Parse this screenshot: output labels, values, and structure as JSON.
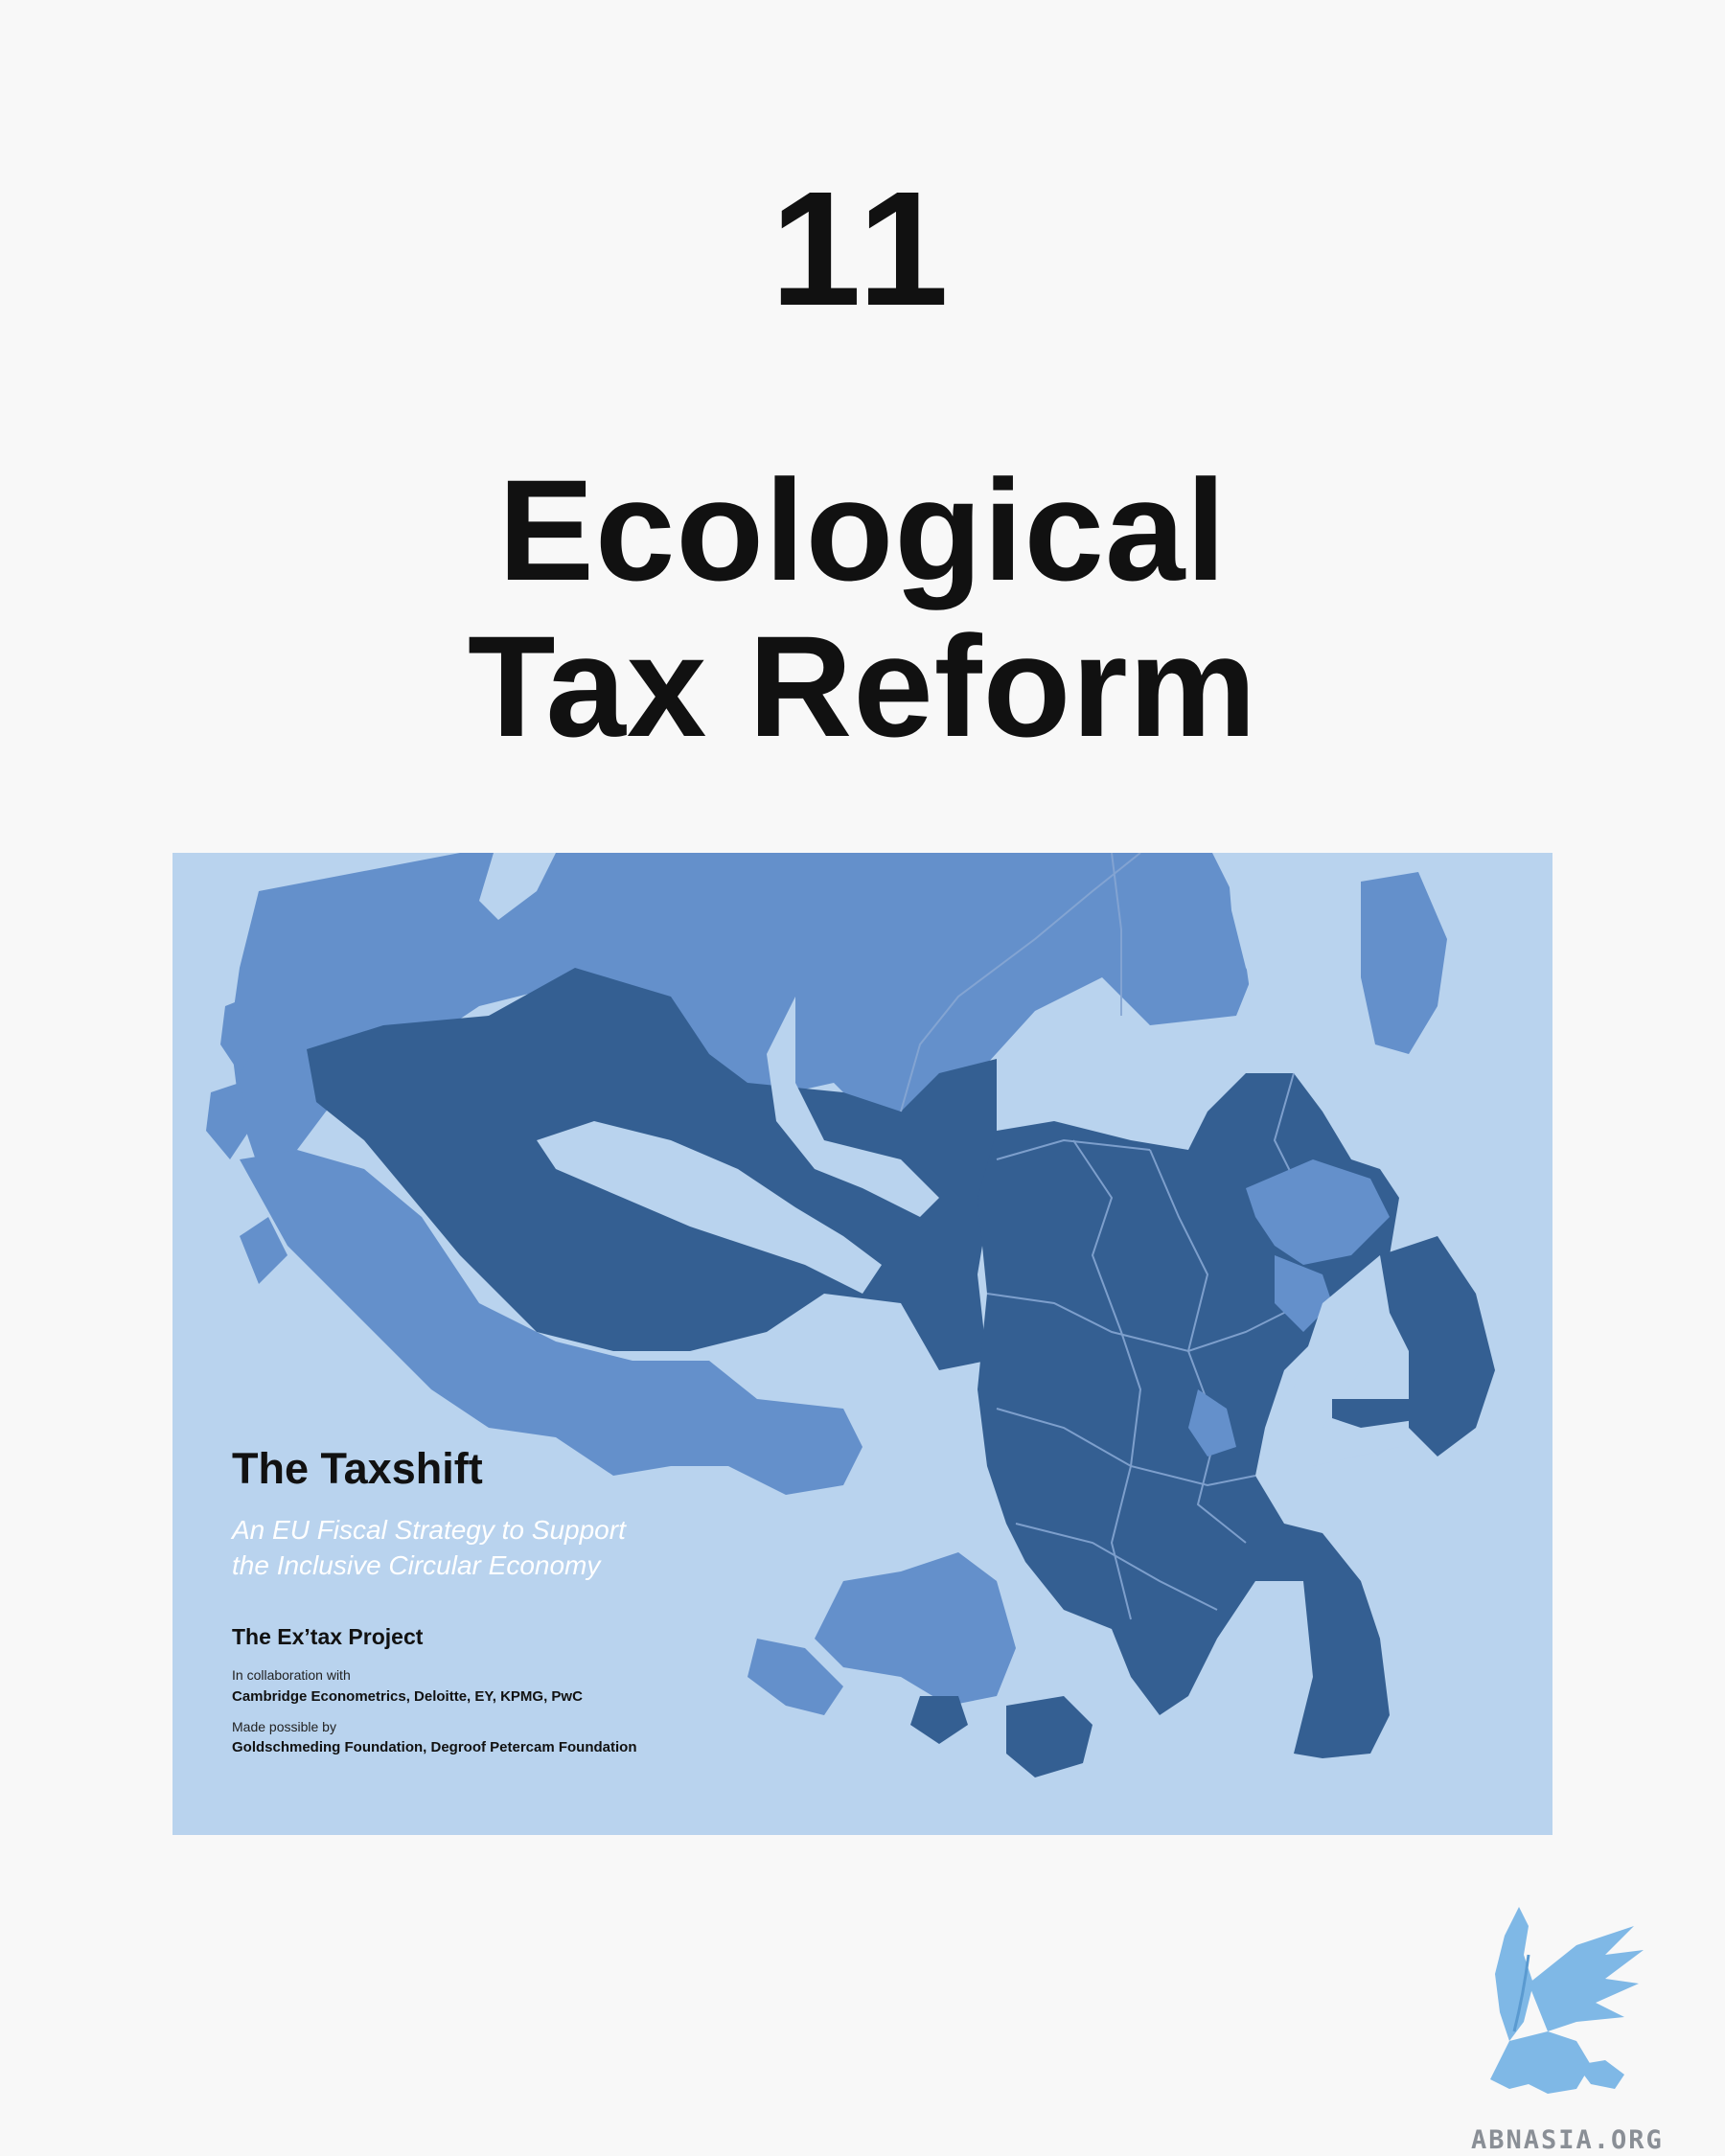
{
  "page": {
    "number": "11",
    "title_line1": "Ecological",
    "title_line2": "Tax Reform"
  },
  "cover": {
    "title": "The Taxshift",
    "subtitle_line1": "An EU Fiscal Strategy to Support",
    "subtitle_line2": "the Inclusive Circular Economy",
    "project": "The Ex’tax Project",
    "collab_label": "In collaboration with",
    "collab_names": "Cambridge Econometrics, Deloitte, EY, KPMG, PwC",
    "made_label": "Made possible by",
    "made_names": "Goldschmeding Foundation, Degroof Petercam Foundation",
    "colors": {
      "sea": "#b9d3ee",
      "light_region": "#6490cb",
      "dark_region": "#345f92"
    }
  },
  "watermark": {
    "text": "ABNASIA.ORG",
    "icon": "griffin-logo-icon"
  }
}
